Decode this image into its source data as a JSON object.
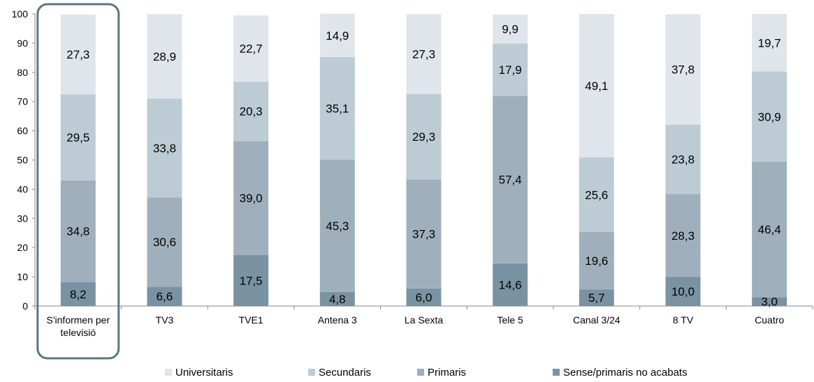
{
  "chart_data": {
    "type": "bar",
    "stacked": true,
    "categories": [
      "S'informen per televisió",
      "TV3",
      "TVE1",
      "Antena 3",
      "La Sexta",
      "Tele 5",
      "Canal 3/24",
      "8 TV",
      "Cuatro"
    ],
    "series": [
      {
        "name": "Sense/primaris no acabats",
        "color": "#7a93a3",
        "values": [
          8.2,
          6.6,
          17.5,
          4.8,
          6.0,
          14.6,
          5.7,
          10.0,
          3.0
        ],
        "labels": [
          "8,2",
          "6,6",
          "17,5",
          "4,8",
          "6,0",
          "14,6",
          "5,7",
          "10,0",
          "3,0"
        ]
      },
      {
        "name": "Primaris",
        "color": "#9fb0bc",
        "values": [
          34.8,
          30.6,
          39.0,
          45.3,
          37.3,
          57.4,
          19.6,
          28.3,
          46.4
        ],
        "labels": [
          "34,8",
          "30,6",
          "39,0",
          "45,3",
          "37,3",
          "57,4",
          "19,6",
          "28,3",
          "46,4"
        ]
      },
      {
        "name": "Secundaris",
        "color": "#bccbd4",
        "values": [
          29.5,
          33.8,
          20.3,
          35.1,
          29.3,
          17.9,
          25.6,
          23.8,
          30.9
        ],
        "labels": [
          "29,5",
          "33,8",
          "20,3",
          "35,1",
          "29,3",
          "17,9",
          "25,6",
          "23,8",
          "30,9"
        ]
      },
      {
        "name": "Universitaris",
        "color": "#dfe5ea",
        "values": [
          27.3,
          28.9,
          22.7,
          14.9,
          27.3,
          9.9,
          49.1,
          37.8,
          19.7
        ],
        "labels": [
          "27,3",
          "28,9",
          "22,7",
          "14,9",
          "27,3",
          "9,9",
          "49,1",
          "37,8",
          "19,7"
        ]
      }
    ],
    "yticks": [
      "0",
      "10",
      "20",
      "30",
      "40",
      "50",
      "60",
      "70",
      "80",
      "90",
      "100"
    ],
    "ylim": [
      0,
      100
    ],
    "legend_order": [
      "Universitaris",
      "Secundaris",
      "Primaris",
      "Sense/primaris no acabats"
    ],
    "legend_position": "bottom",
    "highlight_category": "S'informen per televisió",
    "highlight_color": "#5a7685",
    "grid": false
  }
}
